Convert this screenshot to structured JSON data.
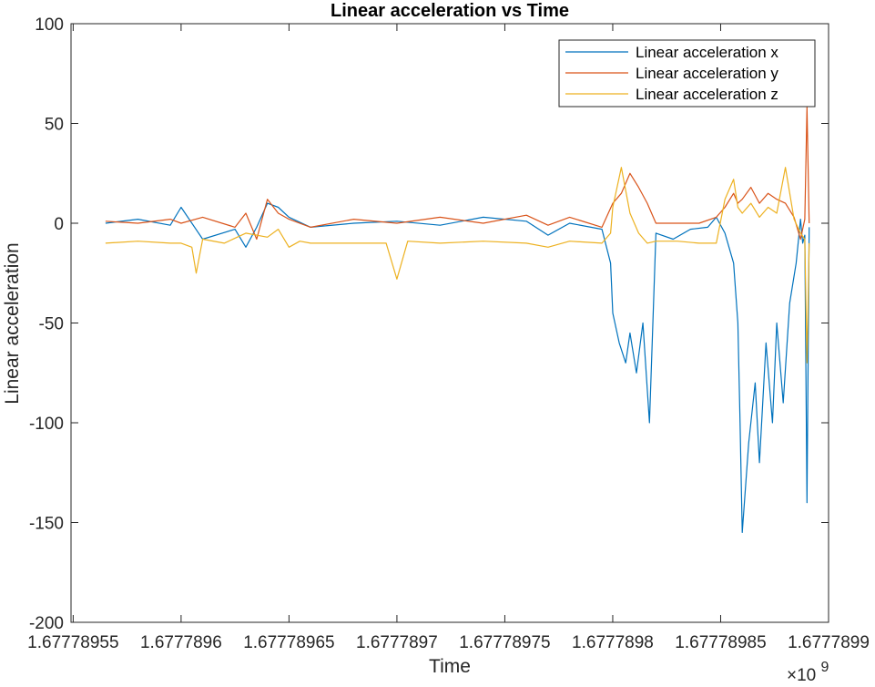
{
  "chart_data": {
    "type": "line",
    "title": "Linear acceleration vs Time",
    "xlabel": "Time",
    "ylabel": "Linear acceleration",
    "x_exponent_label": "×10",
    "x_exponent_power": "9",
    "xlim": [
      1.677789549,
      1.6777899
    ],
    "ylim": [
      -200,
      100
    ],
    "x_ticks": [
      1.67778955,
      1.6777896,
      1.67778965,
      1.6777897,
      1.67778975,
      1.6777898,
      1.67778985,
      1.6777899
    ],
    "x_tick_labels": [
      "1.67778955",
      "1.6777896",
      "1.67778965",
      "1.6777897",
      "1.67778975",
      "1.6777898",
      "1.67778985",
      "1.6777899"
    ],
    "y_ticks": [
      -200,
      -150,
      -100,
      -50,
      0,
      50,
      100
    ],
    "y_tick_labels": [
      "-200",
      "-150",
      "-100",
      "-50",
      "0",
      "50",
      "100"
    ],
    "grid": false,
    "legend_position": "top-right",
    "series": [
      {
        "name": "Linear acceleration x",
        "color": "#0072BD",
        "x": [
          1.677789565,
          1.67778958,
          1.677789595,
          1.6777896,
          1.67778961,
          1.677789625,
          1.67778963,
          1.677789635,
          1.67778964,
          1.677789645,
          1.67778965,
          1.67778966,
          1.67778968,
          1.6777897,
          1.67778972,
          1.67778974,
          1.67778976,
          1.67778977,
          1.67778978,
          1.677789795,
          1.677789799,
          1.6777898,
          1.677789803,
          1.677789806,
          1.677789808,
          1.677789811,
          1.677789814,
          1.677789817,
          1.67778982,
          1.677789828,
          1.677789836,
          1.677789844,
          1.677789848,
          1.677789852,
          1.677789856,
          1.677789858,
          1.677789859,
          1.67778986,
          1.677789863,
          1.677789866,
          1.677789868,
          1.677789871,
          1.677789874,
          1.677789876,
          1.677789879,
          1.677789882,
          1.677789885,
          1.677789887,
          1.677789888,
          1.677789889,
          1.67778989,
          1.677789891
        ],
        "y": [
          0,
          2,
          -1,
          8,
          -8,
          -3,
          -12,
          -2,
          10,
          8,
          3,
          -2,
          0,
          1,
          -1,
          3,
          1,
          -6,
          0,
          -3,
          -20,
          -45,
          -60,
          -70,
          -55,
          -75,
          -50,
          -100,
          -5,
          -8,
          -3,
          -2,
          3,
          -5,
          -20,
          -50,
          -100,
          -155,
          -110,
          -80,
          -120,
          -60,
          -100,
          -50,
          -90,
          -40,
          -20,
          2,
          -10,
          -6,
          -140,
          -2
        ]
      },
      {
        "name": "Linear acceleration y",
        "color": "#D95319",
        "x": [
          1.677789565,
          1.67778958,
          1.677789595,
          1.6777896,
          1.67778961,
          1.677789625,
          1.67778963,
          1.677789635,
          1.67778964,
          1.677789645,
          1.67778965,
          1.67778966,
          1.67778968,
          1.6777897,
          1.67778972,
          1.67778974,
          1.67778976,
          1.67778977,
          1.67778978,
          1.677789795,
          1.6777898,
          1.677789804,
          1.677789808,
          1.677789812,
          1.677789816,
          1.67778982,
          1.67778983,
          1.67778984,
          1.677789848,
          1.677789852,
          1.677789856,
          1.677789858,
          1.67778986,
          1.677789864,
          1.677789868,
          1.677789872,
          1.677789876,
          1.67778988,
          1.677789884,
          1.677789887,
          1.677789889,
          1.67778989,
          1.677789891
        ],
        "y": [
          1,
          0,
          2,
          0,
          3,
          -2,
          5,
          -8,
          12,
          5,
          2,
          -2,
          2,
          0,
          3,
          0,
          4,
          -1,
          3,
          -2,
          10,
          15,
          25,
          18,
          10,
          0,
          0,
          0,
          3,
          8,
          15,
          10,
          12,
          18,
          10,
          15,
          12,
          10,
          3,
          -8,
          2,
          58,
          0
        ]
      },
      {
        "name": "Linear acceleration z",
        "color": "#EDB120",
        "x": [
          1.677789565,
          1.67778958,
          1.677789595,
          1.6777896,
          1.677789605,
          1.677789607,
          1.67778961,
          1.67778962,
          1.67778963,
          1.67778964,
          1.677789645,
          1.67778965,
          1.677789655,
          1.67778966,
          1.67778968,
          1.677789695,
          1.6777897,
          1.677789705,
          1.67778972,
          1.67778974,
          1.67778976,
          1.67778977,
          1.67778978,
          1.677789795,
          1.677789799,
          1.6777898,
          1.677789804,
          1.677789808,
          1.677789812,
          1.677789816,
          1.67778982,
          1.67778983,
          1.67778984,
          1.677789848,
          1.677789852,
          1.677789856,
          1.677789858,
          1.67778986,
          1.677789864,
          1.677789868,
          1.677789872,
          1.677789876,
          1.67778988,
          1.677789884,
          1.677789887,
          1.677789889,
          1.67778989,
          1.677789891
        ],
        "y": [
          -10,
          -9,
          -10,
          -10,
          -12,
          -25,
          -8,
          -10,
          -5,
          -7,
          -3,
          -12,
          -9,
          -10,
          -10,
          -10,
          -28,
          -9,
          -10,
          -9,
          -10,
          -12,
          -9,
          -10,
          -5,
          8,
          28,
          5,
          -5,
          -10,
          -9,
          -9,
          -10,
          -10,
          12,
          22,
          8,
          5,
          10,
          3,
          8,
          5,
          28,
          2,
          -5,
          -8,
          -70,
          -10
        ]
      }
    ]
  }
}
